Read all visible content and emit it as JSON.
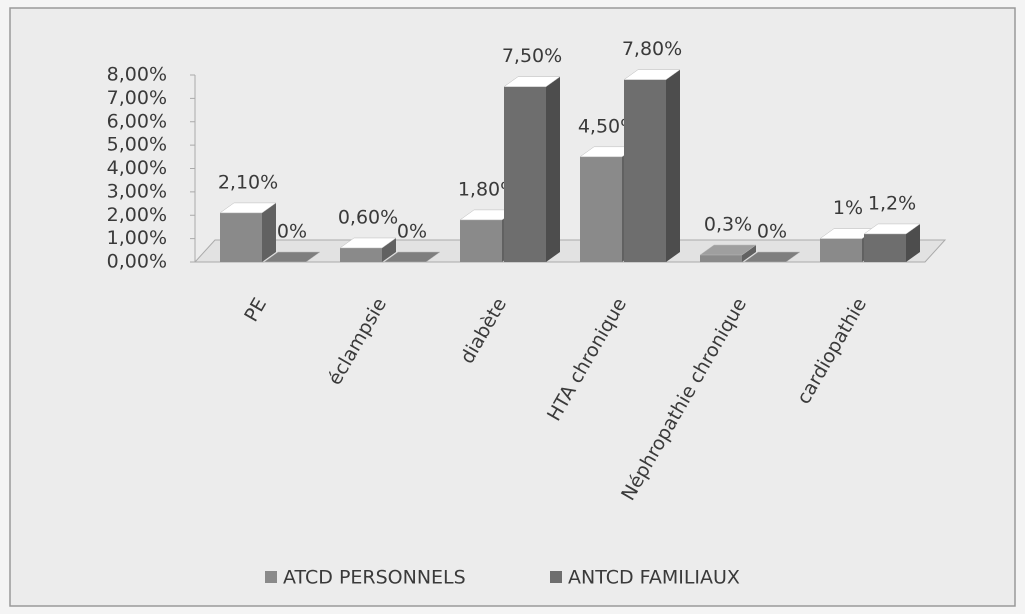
{
  "chart_data": {
    "type": "bar3d",
    "categories": [
      "PE",
      "éclampsie",
      "diabète",
      "HTA chronique",
      "Néphropathie chronique",
      "cardiopathie"
    ],
    "series": [
      {
        "name": "ATCD PERSONNELS",
        "color": "#8a8a8a",
        "values": [
          2.1,
          0.6,
          1.8,
          4.5,
          0.3,
          1
        ],
        "value_labels": [
          "2,10%",
          "0,60%",
          "1,80%",
          "4,50%",
          "0,3%",
          "1%"
        ]
      },
      {
        "name": "ANTCD FAMILIAUX",
        "color": "#6e6e6e",
        "values": [
          0,
          0,
          7.5,
          7.8,
          0,
          1.2
        ],
        "value_labels": [
          "0%",
          "0%",
          "7,50%",
          "7,80%",
          "0%",
          "1,2%"
        ]
      }
    ],
    "ylim": [
      0,
      8
    ],
    "yticks": [
      {
        "value": 0,
        "label": "0,00%"
      },
      {
        "value": 1,
        "label": "1,00%"
      },
      {
        "value": 2,
        "label": "2,00%"
      },
      {
        "value": 3,
        "label": "3,00%"
      },
      {
        "value": 4,
        "label": "4,00%"
      },
      {
        "value": 5,
        "label": "5,00%"
      },
      {
        "value": 6,
        "label": "6,00%"
      },
      {
        "value": 7,
        "label": "7,00%"
      },
      {
        "value": 8,
        "label": "8,00%"
      }
    ],
    "grid": false,
    "legend": "bottom"
  }
}
